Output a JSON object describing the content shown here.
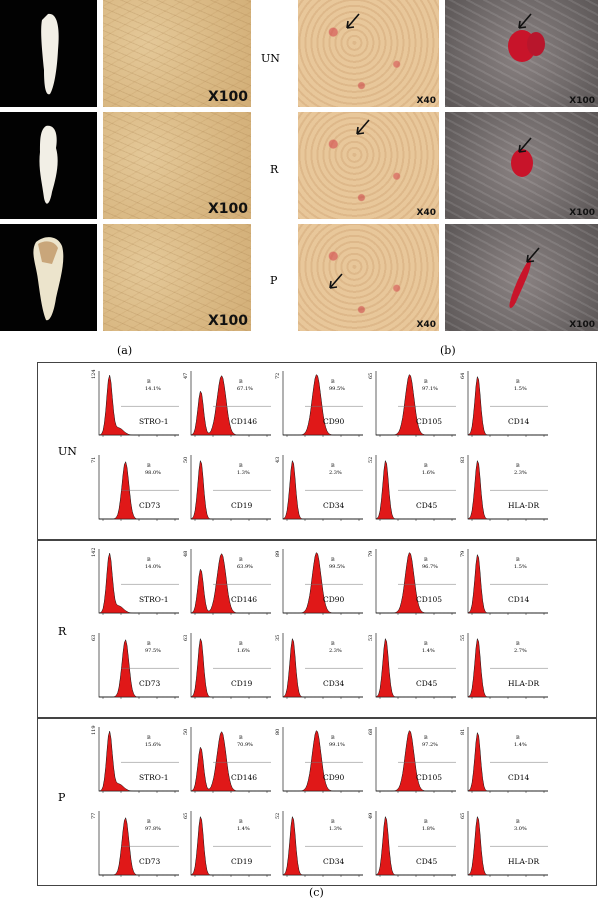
{
  "panel_a": {
    "magnification": [
      "X100",
      "X100",
      "X100"
    ],
    "caption": "(a)"
  },
  "panel_b": {
    "row_labels": [
      "UN",
      "R",
      "P"
    ],
    "mag_low": "X40",
    "mag_high": "X100",
    "caption": "(b)"
  },
  "panel_c": {
    "caption": "(c)",
    "gate": "B",
    "groups": [
      {
        "label": "UN",
        "row1": [
          {
            "marker": "STRO-1",
            "pct": "14.1%",
            "ymax": "124",
            "shape": "stro"
          },
          {
            "marker": "CD146",
            "pct": "67.1%",
            "ymax": "47",
            "shape": "bi"
          },
          {
            "marker": "CD90",
            "pct": "99.5%",
            "ymax": "72",
            "shape": "pos"
          },
          {
            "marker": "CD105",
            "pct": "97.1%",
            "ymax": "65",
            "shape": "pos"
          },
          {
            "marker": "CD14",
            "pct": "1.5%",
            "ymax": "64",
            "shape": "neg"
          }
        ],
        "row2": [
          {
            "marker": "CD73",
            "pct": "98.0%",
            "ymax": "71",
            "shape": "mid"
          },
          {
            "marker": "CD19",
            "pct": "1.3%",
            "ymax": "50",
            "shape": "neg"
          },
          {
            "marker": "CD34",
            "pct": "2.3%",
            "ymax": "43",
            "shape": "neg"
          },
          {
            "marker": "CD45",
            "pct": "1.6%",
            "ymax": "52",
            "shape": "neg"
          },
          {
            "marker": "HLA-DR",
            "pct": "2.3%",
            "ymax": "83",
            "shape": "neg"
          }
        ]
      },
      {
        "label": "R",
        "row1": [
          {
            "marker": "STRO-1",
            "pct": "14.0%",
            "ymax": "142",
            "shape": "stro"
          },
          {
            "marker": "CD146",
            "pct": "63.9%",
            "ymax": "48",
            "shape": "bi"
          },
          {
            "marker": "CD90",
            "pct": "99.5%",
            "ymax": "89",
            "shape": "pos"
          },
          {
            "marker": "CD105",
            "pct": "96.7%",
            "ymax": "79",
            "shape": "pos"
          },
          {
            "marker": "CD14",
            "pct": "1.5%",
            "ymax": "79",
            "shape": "neg"
          }
        ],
        "row2": [
          {
            "marker": "CD73",
            "pct": "97.5%",
            "ymax": "63",
            "shape": "mid"
          },
          {
            "marker": "CD19",
            "pct": "1.6%",
            "ymax": "63",
            "shape": "neg"
          },
          {
            "marker": "CD34",
            "pct": "2.3%",
            "ymax": "35",
            "shape": "neg"
          },
          {
            "marker": "CD45",
            "pct": "1.4%",
            "ymax": "53",
            "shape": "neg"
          },
          {
            "marker": "HLA-DR",
            "pct": "2.7%",
            "ymax": "55",
            "shape": "neg"
          }
        ]
      },
      {
        "label": "P",
        "row1": [
          {
            "marker": "STRO-1",
            "pct": "15.6%",
            "ymax": "119",
            "shape": "stro"
          },
          {
            "marker": "CD146",
            "pct": "70.9%",
            "ymax": "50",
            "shape": "bi"
          },
          {
            "marker": "CD90",
            "pct": "99.1%",
            "ymax": "80",
            "shape": "pos"
          },
          {
            "marker": "CD105",
            "pct": "97.2%",
            "ymax": "68",
            "shape": "pos"
          },
          {
            "marker": "CD14",
            "pct": "1.4%",
            "ymax": "81",
            "shape": "neg"
          }
        ],
        "row2": [
          {
            "marker": "CD73",
            "pct": "97.8%",
            "ymax": "77",
            "shape": "mid"
          },
          {
            "marker": "CD19",
            "pct": "1.4%",
            "ymax": "65",
            "shape": "neg"
          },
          {
            "marker": "CD34",
            "pct": "1.3%",
            "ymax": "52",
            "shape": "neg"
          },
          {
            "marker": "CD45",
            "pct": "1.8%",
            "ymax": "49",
            "shape": "neg"
          },
          {
            "marker": "HLA-DR",
            "pct": "3.0%",
            "ymax": "65",
            "shape": "neg"
          }
        ]
      }
    ]
  },
  "colors": {
    "histogram_fill": "#e01818",
    "background": "#ffffff"
  }
}
